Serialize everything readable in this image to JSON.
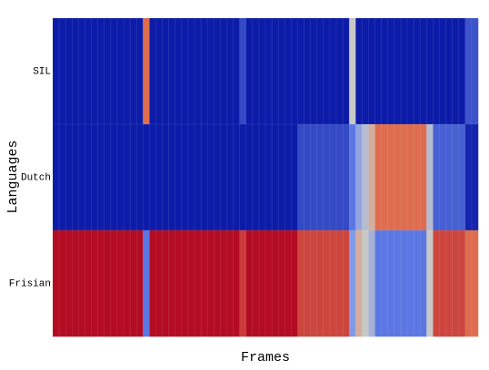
{
  "chart_data": {
    "type": "heatmap",
    "xlabel": "Frames",
    "ylabel": "Languages",
    "categories": [
      "SIL",
      "Dutch",
      "Frisian"
    ],
    "colormap": [
      "#0c1ca8",
      "#6f8ef0",
      "#c8c8c8",
      "#e8855a",
      "#b40c22"
    ],
    "values": [
      [
        0,
        0,
        0,
        0,
        0,
        0,
        0,
        0,
        0,
        0,
        0,
        0,
        0,
        0,
        0.8,
        0,
        0,
        0,
        0,
        0,
        0,
        0,
        0,
        0,
        0,
        0,
        0,
        0,
        0,
        0.1,
        0,
        0,
        0,
        0,
        0,
        0,
        0,
        0,
        0,
        0,
        0,
        0,
        0,
        0,
        0,
        0,
        0.5,
        0,
        0,
        0,
        0,
        0,
        0,
        0,
        0,
        0,
        0,
        0,
        0,
        0,
        0,
        0,
        0,
        0,
        0.12,
        0.12
      ],
      [
        0,
        0,
        0,
        0,
        0,
        0,
        0,
        0,
        0,
        0,
        0,
        0,
        0,
        0,
        0,
        0,
        0,
        0,
        0,
        0,
        0,
        0,
        0,
        0,
        0,
        0,
        0,
        0,
        0,
        0,
        0,
        0,
        0,
        0,
        0,
        0,
        0,
        0,
        0.1,
        0.1,
        0.1,
        0.1,
        0.1,
        0.1,
        0.1,
        0.1,
        0.2,
        0.35,
        0.45,
        0.6,
        0.8,
        0.8,
        0.8,
        0.8,
        0.8,
        0.8,
        0.8,
        0.8,
        0.45,
        0.15,
        0.15,
        0.15,
        0.15,
        0.15,
        0.02,
        0.02
      ],
      [
        1,
        1,
        1,
        1,
        1,
        1,
        1,
        1,
        1,
        1,
        1,
        1,
        1,
        1,
        0.2,
        1,
        1,
        1,
        1,
        1,
        1,
        1,
        1,
        1,
        1,
        1,
        1,
        1,
        1,
        0.9,
        1,
        1,
        1,
        1,
        1,
        1,
        1,
        1,
        0.88,
        0.88,
        0.88,
        0.88,
        0.88,
        0.88,
        0.88,
        0.88,
        0.3,
        0.6,
        0.5,
        0.4,
        0.2,
        0.2,
        0.2,
        0.2,
        0.2,
        0.2,
        0.2,
        0.2,
        0.5,
        0.88,
        0.88,
        0.88,
        0.88,
        0.88,
        0.8,
        0.8
      ]
    ]
  }
}
